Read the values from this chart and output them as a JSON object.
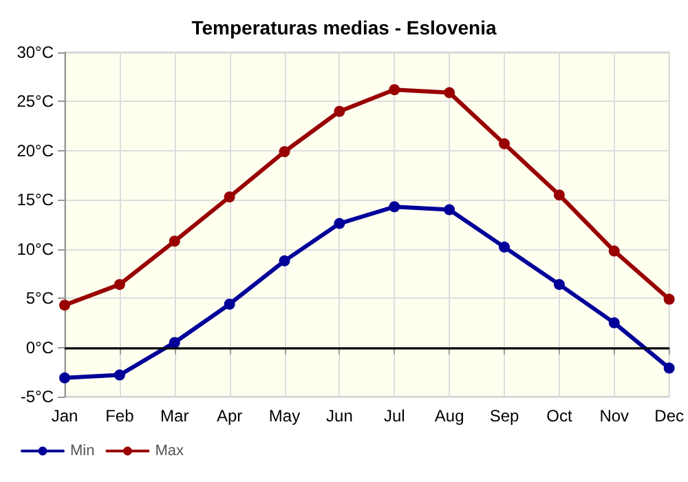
{
  "chart_data": {
    "type": "line",
    "title": "Temperaturas medias - Eslovenia",
    "categories": [
      "Jan",
      "Feb",
      "Mar",
      "Apr",
      "May",
      "Jun",
      "Jul",
      "Aug",
      "Sep",
      "Oct",
      "Nov",
      "Dec"
    ],
    "series": [
      {
        "name": "Min",
        "color": "#000099",
        "values": [
          -3.1,
          -2.8,
          0.5,
          4.4,
          8.8,
          12.6,
          14.3,
          14.0,
          10.2,
          6.4,
          2.5,
          -2.1
        ]
      },
      {
        "name": "Max",
        "color": "#990000",
        "values": [
          4.3,
          6.4,
          10.8,
          15.3,
          19.9,
          24.0,
          26.2,
          25.9,
          20.7,
          15.5,
          9.8,
          4.9
        ]
      }
    ],
    "ylim": [
      -5,
      30
    ],
    "yticks": [
      {
        "value": -5,
        "label": "-5°C"
      },
      {
        "value": 0,
        "label": "0°C"
      },
      {
        "value": 5,
        "label": "5°C"
      },
      {
        "value": 10,
        "label": "10°C"
      },
      {
        "value": 15,
        "label": "15°C"
      },
      {
        "value": 20,
        "label": "20°C"
      },
      {
        "value": 25,
        "label": "25°C"
      },
      {
        "value": 30,
        "label": "30°C"
      }
    ],
    "ref_lines": [
      {
        "axis": "y",
        "value": 0,
        "color": "#000000"
      }
    ],
    "grid": true,
    "legend": "bottom left",
    "marker": "circle",
    "line_style": "solid"
  }
}
